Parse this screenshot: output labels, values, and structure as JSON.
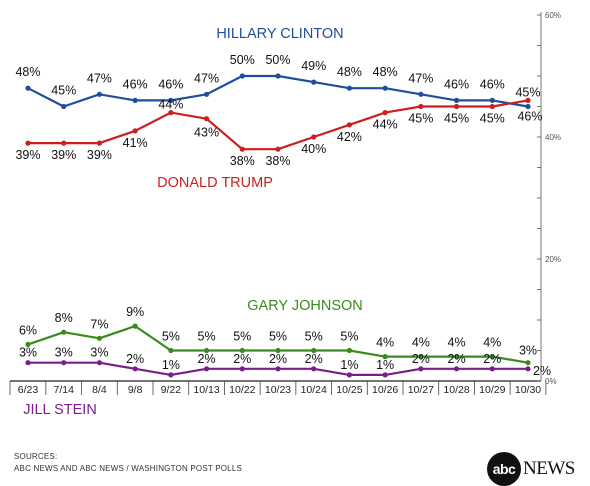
{
  "chart_data": {
    "type": "line",
    "x": [
      "6/23",
      "7/14",
      "8/4",
      "9/8",
      "9/22",
      "10/13",
      "10/22",
      "10/23",
      "10/24",
      "10/25",
      "10/26",
      "10/27",
      "10/28",
      "10/29",
      "10/30"
    ],
    "ylim": [
      0,
      60
    ],
    "y_ticks": [
      "0%",
      "20%",
      "40%",
      "60%"
    ],
    "y_tick_values": [
      0,
      20,
      40,
      60
    ],
    "y_axis_side": "right",
    "grid": false,
    "series": [
      {
        "name": "HILLARY CLINTON",
        "color": "#1f4e9a",
        "values": [
          48,
          45,
          47,
          46,
          46,
          47,
          50,
          50,
          49,
          48,
          48,
          47,
          46,
          46,
          45
        ],
        "labels": [
          "48%",
          "45%",
          "47%",
          "46%",
          "46%",
          "47%",
          "50%",
          "50%",
          "49%",
          "48%",
          "48%",
          "47%",
          "46%",
          "46%",
          "45%"
        ]
      },
      {
        "name": "DONALD TRUMP",
        "color": "#cc1f1f",
        "values": [
          39,
          39,
          39,
          41,
          44,
          43,
          38,
          38,
          40,
          42,
          44,
          45,
          45,
          45,
          46
        ],
        "labels": [
          "39%",
          "39%",
          "39%",
          "41%",
          "44%",
          "43%",
          "38%",
          "38%",
          "40%",
          "42%",
          "44%",
          "45%",
          "45%",
          "45%",
          "46%"
        ]
      },
      {
        "name": "GARY JOHNSON",
        "color": "#3a8a1f",
        "values": [
          6,
          8,
          7,
          9,
          5,
          5,
          5,
          5,
          5,
          5,
          4,
          4,
          4,
          4,
          3
        ],
        "labels": [
          "6%",
          "8%",
          "7%",
          "9%",
          "5%",
          "5%",
          "5%",
          "5%",
          "5%",
          "5%",
          "4%",
          "4%",
          "4%",
          "4%",
          "3%"
        ]
      },
      {
        "name": "JILL STEIN",
        "color": "#7a1f8a",
        "values": [
          3,
          3,
          3,
          2,
          1,
          2,
          2,
          2,
          2,
          1,
          1,
          2,
          2,
          2,
          2
        ],
        "labels": [
          "3%",
          "3%",
          "3%",
          "2%",
          "1%",
          "2%",
          "2%",
          "2%",
          "2%",
          "1%",
          "1%",
          "2%",
          "2%",
          "2%",
          "2%"
        ]
      }
    ]
  },
  "footer": {
    "sources_label": "SOURCES:",
    "sources_text": "ABC NEWS AND ABC NEWS / WASHINGTON POST POLLS"
  },
  "logo": {
    "ball_text": "abc",
    "word": "NEWS"
  }
}
